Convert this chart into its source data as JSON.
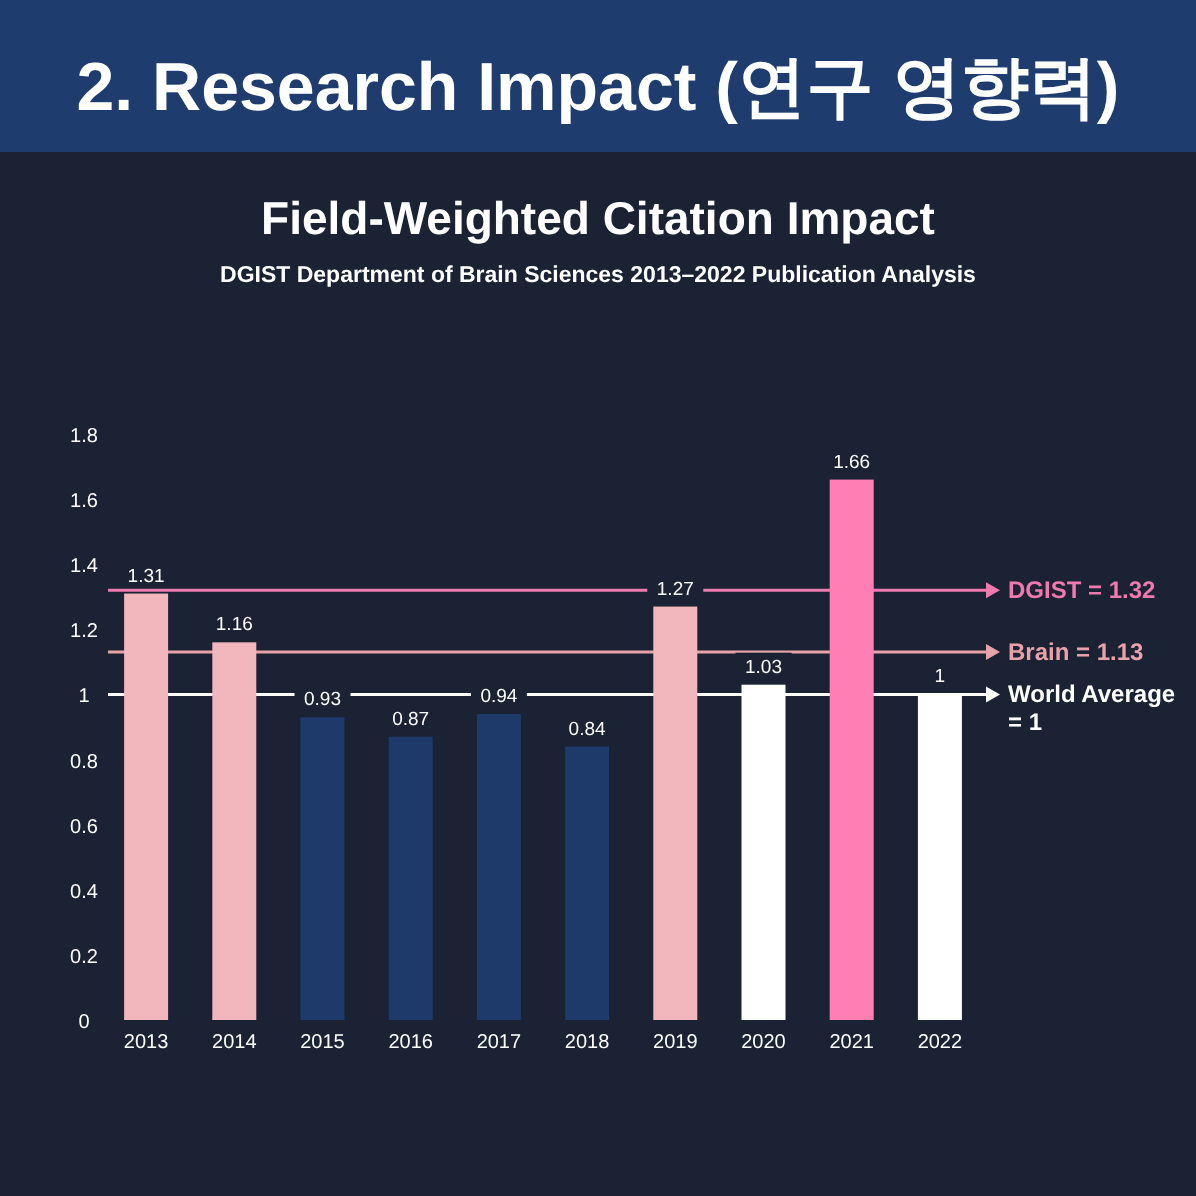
{
  "chart_data": {
    "type": "bar",
    "title": "2. Research Impact (연구 영향력)",
    "subtitle": "Field-Weighted Citation Impact",
    "annotations": [
      "DGIST Department of Brain Sciences 2013–2022 Publication Analysis"
    ],
    "categories": [
      "2013",
      "2014",
      "2015",
      "2016",
      "2017",
      "2018",
      "2019",
      "2020",
      "2021",
      "2022"
    ],
    "values": [
      1.31,
      1.16,
      0.93,
      0.87,
      0.94,
      0.84,
      1.27,
      1.03,
      1.66,
      1
    ],
    "colors": [
      "#f2b6bd",
      "#f2b6bd",
      "#1e3a6b",
      "#1e3a6b",
      "#1e3a6b",
      "#1e3a6b",
      "#f2b6bd",
      "#ffffff",
      "#ff7fb5",
      "#ffffff"
    ],
    "ylim": [
      0,
      1.8
    ],
    "yticks": [
      0,
      0.2,
      0.4,
      0.6,
      0.8,
      1,
      1.2,
      1.4,
      1.6,
      1.8
    ],
    "data_labels": true,
    "ref_lines": [
      {
        "axis": "y",
        "value": 1.32,
        "label": "DGIST = 1.32",
        "color": "#f07ab0"
      },
      {
        "axis": "y",
        "value": 1.13,
        "label": "Brain = 1.13",
        "color": "#e8a3aa"
      },
      {
        "axis": "y",
        "value": 1,
        "label": "World Average = 1",
        "color": "#ffffff"
      }
    ]
  }
}
